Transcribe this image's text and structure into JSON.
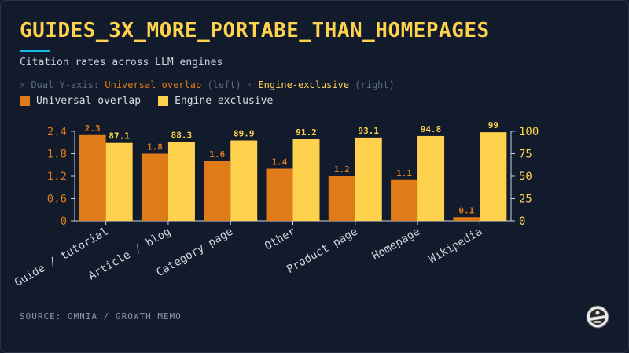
{
  "header": {
    "title": "GUIDES_3X_MORE_PORTABE_THAN_HOMEPAGES",
    "subtitle": "Citation rates across LLM engines",
    "axis_note_prefix": "⚡ Dual Y-axis: ",
    "axis_note_left_name": "Universal overlap",
    "axis_note_left_suffix": " (left) · ",
    "axis_note_right_name": "Engine-exclusive",
    "axis_note_right_suffix": " (right)"
  },
  "colors": {
    "background": "#121b2b",
    "title": "#ffd24d",
    "accent": "#1ab8e6",
    "universal": "#e07b1a",
    "exclusive": "#ffd24d"
  },
  "chart_data": {
    "type": "bar",
    "categories": [
      "Guide / tutorial",
      "Article / blog",
      "Category page",
      "Other",
      "Product page",
      "Homepage",
      "Wikipedia"
    ],
    "series": [
      {
        "name": "Universal overlap",
        "axis": "left",
        "color": "#e07b1a",
        "values": [
          2.3,
          1.8,
          1.6,
          1.4,
          1.2,
          1.1,
          0.1
        ]
      },
      {
        "name": "Engine-exclusive",
        "axis": "right",
        "color": "#ffd24d",
        "values": [
          87.1,
          88.3,
          89.9,
          91.2,
          93.1,
          94.8,
          99
        ]
      }
    ],
    "left_axis": {
      "ylim": [
        0,
        2.4
      ],
      "ticks": [
        "0",
        "0.6",
        "1.2",
        "1.8",
        "2.4"
      ]
    },
    "right_axis": {
      "ylim": [
        0,
        100
      ],
      "ticks": [
        "0",
        "25",
        "50",
        "75",
        "100"
      ]
    },
    "legend_placement": "top-left",
    "grid": false
  },
  "footer": {
    "source": "SOURCE: OMNIA / GROWTH MEMO",
    "logo_icon": "badge-logo-icon"
  }
}
